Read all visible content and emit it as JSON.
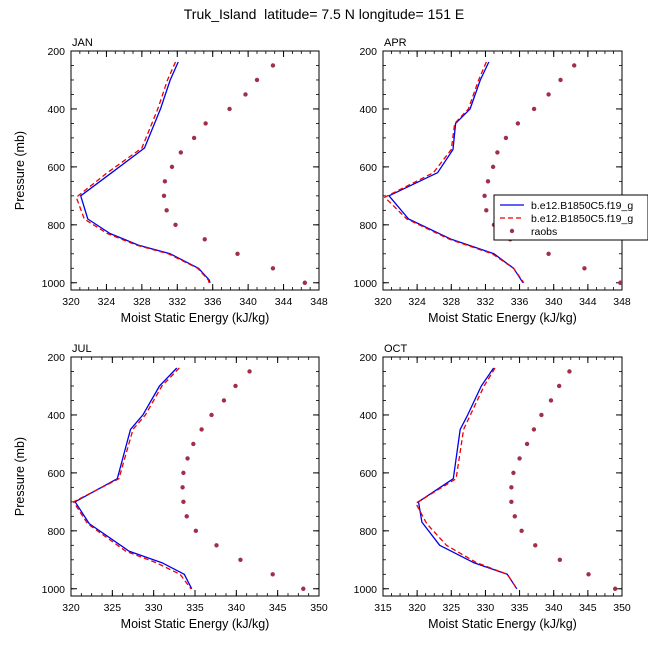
{
  "title": "Truk_Island  latitude= 7.5 N longitude= 151 E",
  "colors": {
    "model1": "#0000ee",
    "model2": "#ee0000",
    "raobs": "#a0304a",
    "axis": "#000000"
  },
  "legend": {
    "entries": [
      "b.e12.B1850C5.f19_g",
      "b.e12.B1850C5.f19_g",
      "raobs"
    ]
  },
  "chart_data": [
    {
      "type": "line",
      "panel": "JAN",
      "xlabel": "Moist Static Energy (kJ/kg)",
      "ylabel": "Pressure (mb)",
      "xlim": [
        320,
        348
      ],
      "xticks": [
        320,
        324,
        328,
        332,
        336,
        340,
        344,
        348
      ],
      "ylim": [
        200,
        1025
      ],
      "yticks": [
        200,
        400,
        600,
        800,
        1000
      ],
      "y_inverted": true,
      "series": [
        {
          "marker": "line-solid",
          "color": "#0000ee",
          "x": [
            332.1,
            331.2,
            330.1,
            328.3,
            324.6,
            321.1,
            321.9,
            324.4,
            327.6,
            331.2,
            334.4,
            335.6,
            335.7
          ],
          "y": [
            238,
            300,
            400,
            535,
            620,
            700,
            780,
            830,
            870,
            900,
            950,
            990,
            1000
          ]
        },
        {
          "marker": "line-dashed",
          "color": "#ee0000",
          "x": [
            331.8,
            330.9,
            329.8,
            328.0,
            324.1,
            320.6,
            321.5,
            324.1,
            327.4,
            331.0,
            334.3,
            335.5,
            335.6
          ],
          "y": [
            238,
            300,
            400,
            535,
            620,
            705,
            780,
            830,
            870,
            900,
            950,
            990,
            1000
          ]
        },
        {
          "name": "raobs",
          "marker": "dots",
          "color": "#a0304a",
          "x": [
            342.8,
            341.0,
            339.7,
            337.9,
            335.2,
            333.9,
            332.4,
            331.4,
            330.6,
            330.5,
            330.8,
            331.8,
            335.1,
            338.8,
            342.8,
            346.4
          ],
          "y": [
            250,
            300,
            350,
            400,
            450,
            500,
            550,
            600,
            650,
            700,
            750,
            800,
            850,
            900,
            950,
            1000
          ]
        }
      ]
    },
    {
      "type": "line",
      "panel": "APR",
      "xlabel": "Moist Static Energy (kJ/kg)",
      "ylabel": "",
      "xlim": [
        320,
        348
      ],
      "xticks": [
        320,
        324,
        328,
        332,
        336,
        340,
        344,
        348
      ],
      "ylim": [
        200,
        1025
      ],
      "yticks": [
        200,
        400,
        600,
        800,
        1000
      ],
      "y_inverted": true,
      "series": [
        {
          "name": "b.e12.B1850C5.f19_g",
          "marker": "line-solid",
          "color": "#0000ee",
          "x": [
            332.4,
            331.4,
            330.2,
            328.5,
            328.2,
            326.4,
            320.7,
            323.0,
            328.0,
            333.0,
            335.3,
            336.4
          ],
          "y": [
            238,
            300,
            400,
            450,
            540,
            620,
            700,
            780,
            850,
            900,
            950,
            1000
          ]
        },
        {
          "name": "b.e12.B1850C5.f19_g",
          "marker": "line-dashed",
          "color": "#ee0000",
          "x": [
            332.1,
            331.2,
            330.0,
            328.4,
            328.0,
            325.9,
            320.2,
            322.8,
            327.8,
            332.8,
            335.3,
            336.5
          ],
          "y": [
            238,
            300,
            400,
            450,
            540,
            620,
            705,
            780,
            850,
            900,
            950,
            1000
          ]
        },
        {
          "name": "raobs",
          "marker": "dots",
          "color": "#a0304a",
          "x": [
            342.4,
            340.8,
            339.4,
            337.7,
            335.8,
            334.4,
            333.4,
            332.9,
            332.3,
            331.9,
            332.1,
            333.0,
            334.9,
            339.4,
            343.6,
            347.8
          ],
          "y": [
            250,
            300,
            350,
            400,
            450,
            500,
            550,
            600,
            650,
            700,
            750,
            800,
            850,
            900,
            950,
            1000
          ]
        }
      ]
    },
    {
      "type": "line",
      "panel": "JUL",
      "xlabel": "Moist Static Energy (kJ/kg)",
      "ylabel": "Pressure (mb)",
      "xlim": [
        320,
        350
      ],
      "xticks": [
        320,
        325,
        330,
        335,
        340,
        345,
        350
      ],
      "ylim": [
        200,
        1025
      ],
      "yticks": [
        200,
        400,
        600,
        800,
        1000
      ],
      "y_inverted": true,
      "series": [
        {
          "marker": "line-solid",
          "color": "#0000ee",
          "x": [
            332.8,
            330.7,
            328.7,
            327.2,
            325.6,
            320.5,
            322.2,
            327.0,
            331.0,
            333.7,
            334.6
          ],
          "y": [
            238,
            300,
            400,
            450,
            620,
            700,
            775,
            870,
            910,
            950,
            1000
          ]
        },
        {
          "marker": "line-dashed",
          "color": "#ee0000",
          "x": [
            333.1,
            331.0,
            329.0,
            327.5,
            325.8,
            320.3,
            322.0,
            326.6,
            330.3,
            333.2,
            334.5
          ],
          "y": [
            238,
            300,
            400,
            450,
            620,
            700,
            775,
            870,
            910,
            950,
            1000
          ]
        },
        {
          "name": "raobs",
          "marker": "dots",
          "color": "#a0304a",
          "x": [
            341.6,
            339.9,
            338.5,
            337.0,
            335.8,
            334.8,
            334.1,
            333.6,
            333.5,
            333.6,
            334.0,
            335.1,
            337.6,
            340.5,
            344.4,
            348.1
          ],
          "y": [
            250,
            300,
            350,
            400,
            450,
            500,
            550,
            600,
            650,
            700,
            750,
            800,
            850,
            900,
            950,
            1000
          ]
        }
      ]
    },
    {
      "type": "line",
      "panel": "OCT",
      "xlabel": "Moist Static Energy (kJ/kg)",
      "ylabel": "",
      "xlim": [
        315,
        350
      ],
      "xticks": [
        315,
        320,
        325,
        330,
        335,
        340,
        345,
        350
      ],
      "ylim": [
        200,
        1025
      ],
      "yticks": [
        200,
        400,
        600,
        800,
        1000
      ],
      "y_inverted": true,
      "series": [
        {
          "marker": "line-solid",
          "color": "#0000ee",
          "x": [
            331.2,
            329.4,
            327.4,
            326.3,
            325.3,
            320.2,
            320.7,
            323.3,
            328.3,
            333.2,
            334.6
          ],
          "y": [
            238,
            300,
            400,
            450,
            620,
            700,
            770,
            850,
            910,
            950,
            1000
          ]
        },
        {
          "marker": "line-dashed",
          "color": "#ee0000",
          "x": [
            331.4,
            329.8,
            327.8,
            326.8,
            325.7,
            319.8,
            321.4,
            324.3,
            328.7,
            333.2,
            334.6
          ],
          "y": [
            238,
            300,
            400,
            450,
            620,
            705,
            775,
            850,
            910,
            950,
            1000
          ]
        },
        {
          "name": "raobs",
          "marker": "dots",
          "color": "#a0304a",
          "x": [
            342.3,
            340.8,
            339.6,
            338.2,
            337.1,
            336.1,
            335.0,
            334.1,
            333.8,
            333.8,
            334.3,
            335.3,
            337.3,
            340.9,
            345.1,
            349.0
          ],
          "y": [
            250,
            300,
            350,
            400,
            450,
            500,
            550,
            600,
            650,
            700,
            750,
            800,
            850,
            900,
            950,
            1000
          ]
        }
      ]
    }
  ]
}
